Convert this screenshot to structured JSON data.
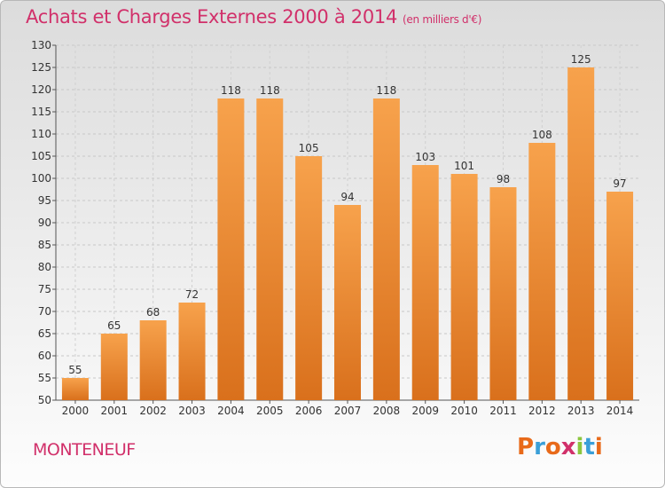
{
  "title": "Achats et Charges Externes 2000 à 2014",
  "subtitle": "(en milliers d'€)",
  "town": "MONTENEUF",
  "logo": {
    "text": "Proxiti",
    "colors": [
      "#e86a1a",
      "#3a9fd8",
      "#e86a1a",
      "#d1306a",
      "#8cc63e",
      "#3a9fd8",
      "#e86a1a"
    ]
  },
  "chart_data": {
    "type": "bar",
    "title": "Achats et Charges Externes 2000 à 2014",
    "subtitle": "(en milliers d'€)",
    "categories": [
      "2000",
      "2001",
      "2002",
      "2003",
      "2004",
      "2005",
      "2006",
      "2007",
      "2008",
      "2009",
      "2010",
      "2011",
      "2012",
      "2013",
      "2014"
    ],
    "values": [
      55,
      65,
      68,
      72,
      118,
      118,
      105,
      94,
      118,
      103,
      101,
      98,
      108,
      125,
      97
    ],
    "ylim": [
      50,
      130
    ],
    "yticks": [
      50,
      55,
      60,
      65,
      70,
      75,
      80,
      85,
      90,
      95,
      100,
      105,
      110,
      115,
      120,
      125,
      130
    ],
    "grid": true,
    "bar_color": "#f08a2c"
  }
}
